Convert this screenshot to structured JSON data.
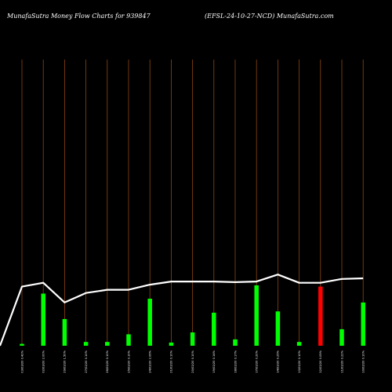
{
  "header": {
    "left_title": "MunafaSutra  Money Flow  Charts for 939847",
    "right_title": "(EFSL-24-10-27-NCD) MunafaSutra.com"
  },
  "colors": {
    "background": "#000000",
    "gridline": "#8b4513",
    "bar_up": "#00ff00",
    "bar_down": "#ff0000",
    "price_line": "#ffffff"
  },
  "chart_data": {
    "type": "bar",
    "overlay": "line",
    "categories": [
      "03/03/20 0.42%",
      "02/03/20 2.00%",
      "29/02/20 1.50%",
      "27/02/20 0.10%",
      "26/02/20 0.10%",
      "25/02/20 0.10%",
      "24/02/20 2.06%",
      "21/02/20 0.10%",
      "20/02/20 0.10%",
      "19/02/20 0.14%",
      "18/02/20 0.17%",
      "17/02/20 0.20%",
      "14/02/20 0.25%",
      "13/02/20 0.10%",
      "12/02/20 0.05%",
      "11/02/20 0.22%",
      "10/02/20 0.10%"
    ],
    "volume_bars": [
      {
        "value": 3,
        "direction": "up"
      },
      {
        "value": 82,
        "direction": "up"
      },
      {
        "value": 42,
        "direction": "up"
      },
      {
        "value": 6,
        "direction": "up"
      },
      {
        "value": 6,
        "direction": "up"
      },
      {
        "value": 18,
        "direction": "up"
      },
      {
        "value": 74,
        "direction": "up"
      },
      {
        "value": 5,
        "direction": "up"
      },
      {
        "value": 21,
        "direction": "up"
      },
      {
        "value": 52,
        "direction": "up"
      },
      {
        "value": 10,
        "direction": "up"
      },
      {
        "value": 95,
        "direction": "up"
      },
      {
        "value": 54,
        "direction": "up"
      },
      {
        "value": 6,
        "direction": "up"
      },
      {
        "value": 93,
        "direction": "down"
      },
      {
        "value": 26,
        "direction": "up"
      },
      {
        "value": 68,
        "direction": "up"
      }
    ],
    "price_line": [
      93,
      99,
      68,
      83,
      88,
      88,
      96,
      101,
      101,
      101,
      100,
      101,
      112,
      99,
      99,
      105,
      106
    ],
    "ylim": [
      0,
      450
    ],
    "grid": "vertical"
  }
}
